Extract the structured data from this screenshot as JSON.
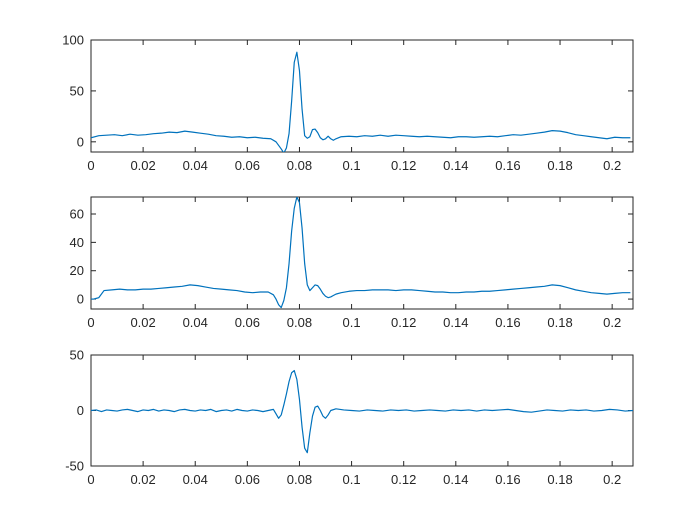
{
  "chart_data": [
    {
      "type": "line",
      "xlim": [
        0,
        0.208
      ],
      "ylim": [
        -10,
        100
      ],
      "xticks": [
        0,
        0.02,
        0.04,
        0.06,
        0.08,
        0.1,
        0.12,
        0.14,
        0.16,
        0.18,
        0.2
      ],
      "xtick_labels": [
        "0",
        "0.02",
        "0.04",
        "0.06",
        "0.08",
        "0.1",
        "0.12",
        "0.14",
        "0.16",
        "0.18",
        "0.2"
      ],
      "yticks": [
        0,
        50,
        100
      ],
      "ytick_labels": [
        "0",
        "50",
        "100"
      ],
      "grid": false,
      "color": "#0072BD",
      "series": [
        {
          "x": [
            0,
            0.003,
            0.006,
            0.009,
            0.012,
            0.015,
            0.018,
            0.021,
            0.024,
            0.027,
            0.03,
            0.033,
            0.036,
            0.039,
            0.042,
            0.045,
            0.048,
            0.051,
            0.054,
            0.057,
            0.06,
            0.063,
            0.066,
            0.069,
            0.071,
            0.073,
            0.074,
            0.075,
            0.076,
            0.077,
            0.078,
            0.079,
            0.08,
            0.081,
            0.082,
            0.083,
            0.084,
            0.085,
            0.086,
            0.087,
            0.088,
            0.089,
            0.09,
            0.091,
            0.092,
            0.093,
            0.094,
            0.096,
            0.099,
            0.102,
            0.105,
            0.108,
            0.111,
            0.114,
            0.117,
            0.12,
            0.123,
            0.126,
            0.129,
            0.132,
            0.135,
            0.138,
            0.141,
            0.144,
            0.147,
            0.15,
            0.153,
            0.156,
            0.159,
            0.162,
            0.165,
            0.168,
            0.171,
            0.174,
            0.177,
            0.18,
            0.183,
            0.186,
            0.189,
            0.192,
            0.195,
            0.198,
            0.201,
            0.204,
            0.207
          ],
          "y": [
            4,
            6,
            6.5,
            7,
            6,
            7.5,
            6.5,
            7,
            8,
            8.5,
            9.5,
            9,
            10.5,
            9.5,
            8.5,
            7.5,
            6,
            5.5,
            4.5,
            5,
            4,
            4.5,
            3.5,
            3,
            0,
            -7,
            -11,
            -6,
            8,
            40,
            78,
            88,
            70,
            32,
            6,
            3.5,
            5,
            12,
            12.5,
            9,
            4,
            2,
            3,
            5.5,
            3,
            1.5,
            3,
            5,
            5.5,
            5,
            6,
            5.5,
            6.5,
            5.5,
            6.5,
            6,
            5.5,
            5,
            5.5,
            5,
            4.5,
            4,
            5,
            5,
            4.5,
            5,
            5.5,
            5,
            6,
            7,
            6.5,
            7.5,
            8.5,
            9.5,
            11,
            10.5,
            9,
            7,
            6,
            5,
            4,
            3,
            4.5,
            4,
            4
          ]
        }
      ]
    },
    {
      "type": "line",
      "xlim": [
        0,
        0.208
      ],
      "ylim": [
        -7,
        72
      ],
      "xticks": [
        0,
        0.02,
        0.04,
        0.06,
        0.08,
        0.1,
        0.12,
        0.14,
        0.16,
        0.18,
        0.2
      ],
      "xtick_labels": [
        "0",
        "0.02",
        "0.04",
        "0.06",
        "0.08",
        "0.1",
        "0.12",
        "0.14",
        "0.16",
        "0.18",
        "0.2"
      ],
      "yticks": [
        0,
        20,
        40,
        60
      ],
      "ytick_labels": [
        "0",
        "20",
        "40",
        "60"
      ],
      "grid": false,
      "color": "#0072BD",
      "series": [
        {
          "x": [
            0,
            0.001,
            0.002,
            0.003,
            0.005,
            0.008,
            0.011,
            0.014,
            0.017,
            0.02,
            0.023,
            0.026,
            0.029,
            0.032,
            0.035,
            0.038,
            0.041,
            0.044,
            0.047,
            0.05,
            0.053,
            0.056,
            0.059,
            0.062,
            0.065,
            0.068,
            0.07,
            0.071,
            0.072,
            0.073,
            0.074,
            0.075,
            0.076,
            0.077,
            0.078,
            0.079,
            0.08,
            0.081,
            0.082,
            0.083,
            0.084,
            0.085,
            0.086,
            0.087,
            0.088,
            0.089,
            0.09,
            0.091,
            0.092,
            0.093,
            0.094,
            0.096,
            0.099,
            0.102,
            0.105,
            0.108,
            0.111,
            0.114,
            0.117,
            0.12,
            0.123,
            0.126,
            0.129,
            0.132,
            0.135,
            0.138,
            0.141,
            0.144,
            0.147,
            0.15,
            0.153,
            0.156,
            0.159,
            0.162,
            0.165,
            0.168,
            0.171,
            0.174,
            0.177,
            0.18,
            0.183,
            0.186,
            0.189,
            0.192,
            0.195,
            0.198,
            0.201,
            0.204,
            0.207
          ],
          "y": [
            0,
            0,
            0.5,
            1,
            6,
            6.5,
            7,
            6.5,
            6.5,
            7,
            7,
            7.5,
            8,
            8.5,
            9,
            10,
            9.5,
            8.5,
            7.5,
            7,
            6.5,
            6,
            5,
            4.5,
            5,
            5,
            3,
            0,
            -4,
            -6,
            -1,
            8,
            25,
            48,
            64,
            72,
            68,
            50,
            25,
            10,
            6,
            8,
            10,
            9.5,
            7,
            4,
            2,
            1,
            1.5,
            2.5,
            3.5,
            4.5,
            5.5,
            6,
            6,
            6.5,
            6.5,
            6.5,
            6,
            6.5,
            6.5,
            6,
            5.5,
            5,
            5,
            4.5,
            4.5,
            5,
            5,
            5.5,
            5.5,
            6,
            6.5,
            7,
            7.5,
            8,
            8.5,
            9,
            10,
            9.5,
            8,
            6.5,
            5.5,
            4.5,
            4,
            3.5,
            4,
            4.5,
            4.5
          ]
        }
      ]
    },
    {
      "type": "line",
      "xlim": [
        0,
        0.208
      ],
      "ylim": [
        -50,
        50
      ],
      "xticks": [
        0,
        0.02,
        0.04,
        0.06,
        0.08,
        0.1,
        0.12,
        0.14,
        0.16,
        0.18,
        0.2
      ],
      "xtick_labels": [
        "0",
        "0.02",
        "0.04",
        "0.06",
        "0.08",
        "0.1",
        "0.12",
        "0.14",
        "0.16",
        "0.18",
        "0.2"
      ],
      "yticks": [
        -50,
        0,
        50
      ],
      "ytick_labels": [
        "-50",
        "0",
        "50"
      ],
      "grid": false,
      "color": "#0072BD",
      "series": [
        {
          "x": [
            0,
            0.002,
            0.004,
            0.006,
            0.008,
            0.01,
            0.012,
            0.014,
            0.016,
            0.018,
            0.02,
            0.022,
            0.024,
            0.026,
            0.028,
            0.03,
            0.032,
            0.034,
            0.036,
            0.038,
            0.04,
            0.042,
            0.044,
            0.046,
            0.048,
            0.05,
            0.052,
            0.054,
            0.056,
            0.058,
            0.06,
            0.062,
            0.064,
            0.066,
            0.068,
            0.07,
            0.071,
            0.072,
            0.073,
            0.074,
            0.075,
            0.076,
            0.077,
            0.078,
            0.079,
            0.08,
            0.081,
            0.082,
            0.083,
            0.084,
            0.085,
            0.086,
            0.087,
            0.088,
            0.089,
            0.09,
            0.091,
            0.092,
            0.094,
            0.097,
            0.1,
            0.103,
            0.106,
            0.109,
            0.112,
            0.115,
            0.118,
            0.121,
            0.124,
            0.127,
            0.13,
            0.133,
            0.136,
            0.139,
            0.142,
            0.145,
            0.148,
            0.151,
            0.154,
            0.157,
            0.16,
            0.163,
            0.166,
            0.169,
            0.172,
            0.175,
            0.178,
            0.181,
            0.184,
            0.187,
            0.19,
            0.193,
            0.196,
            0.199,
            0.202,
            0.205,
            0.208
          ],
          "y": [
            0,
            0.5,
            -1,
            0.5,
            0,
            -0.5,
            0.5,
            1,
            0,
            -1,
            0.5,
            0,
            1,
            -0.5,
            0.5,
            0,
            -1,
            0.5,
            1,
            0,
            -0.5,
            0.5,
            0,
            1,
            -1,
            0,
            0.5,
            -0.5,
            1,
            0,
            -0.5,
            0.5,
            0,
            -1,
            0,
            1,
            -3,
            -7,
            -4,
            5,
            15,
            26,
            34,
            36,
            28,
            10,
            -15,
            -34,
            -38,
            -20,
            -5,
            3,
            4,
            0,
            -5,
            -7,
            -4,
            0,
            1.5,
            0.5,
            0,
            -0.5,
            0.5,
            0,
            -0.5,
            0.5,
            0,
            0.5,
            -0.5,
            0,
            0.5,
            0,
            -0.5,
            0.5,
            0,
            0.5,
            -0.5,
            0.5,
            0,
            0.5,
            1,
            0,
            -1,
            -1.5,
            -0.5,
            0.5,
            0,
            -0.5,
            0.5,
            0,
            0.5,
            -0.5,
            0,
            1,
            0.5,
            -0.5,
            0
          ]
        }
      ]
    }
  ]
}
